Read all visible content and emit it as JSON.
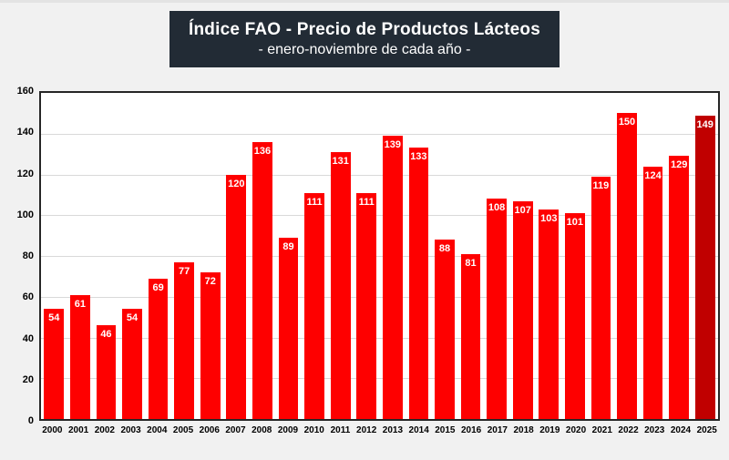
{
  "title": {
    "line1": "Índice FAO - Precio de Productos Lácteos",
    "line2": "- enero-noviembre de cada año -"
  },
  "colors": {
    "bar": "#fe0000",
    "bar_highlight": "#c00000",
    "title_bg": "#222b35",
    "title_text": "#ffffff",
    "background": "#f1f1f1",
    "plot_bg": "#ffffff",
    "plot_border": "#262626",
    "gridline": "#d9d9d9",
    "axis_text": "#000000",
    "value_label": "#ffffff"
  },
  "chart_data": {
    "type": "bar",
    "title": "Índice FAO - Precio de Productos Lácteos",
    "subtitle": "- enero-noviembre de cada año -",
    "categories": [
      "2000",
      "2001",
      "2002",
      "2003",
      "2004",
      "2005",
      "2006",
      "2007",
      "2008",
      "2009",
      "2010",
      "2011",
      "2012",
      "2013",
      "2014",
      "2015",
      "2016",
      "2017",
      "2018",
      "2019",
      "2020",
      "2021",
      "2022",
      "2023",
      "2024",
      "2025"
    ],
    "values": [
      54,
      61,
      46,
      54,
      69,
      77,
      72,
      120,
      136,
      89,
      111,
      131,
      111,
      139,
      133,
      88,
      81,
      108,
      107,
      103,
      101,
      119,
      150,
      124,
      129,
      149
    ],
    "highlight_index": 25,
    "xlabel": "",
    "ylabel": "",
    "ylim": [
      0,
      160
    ],
    "ytick_step": 20,
    "grid": true,
    "legend": "none",
    "data_labels": "inside-end"
  }
}
